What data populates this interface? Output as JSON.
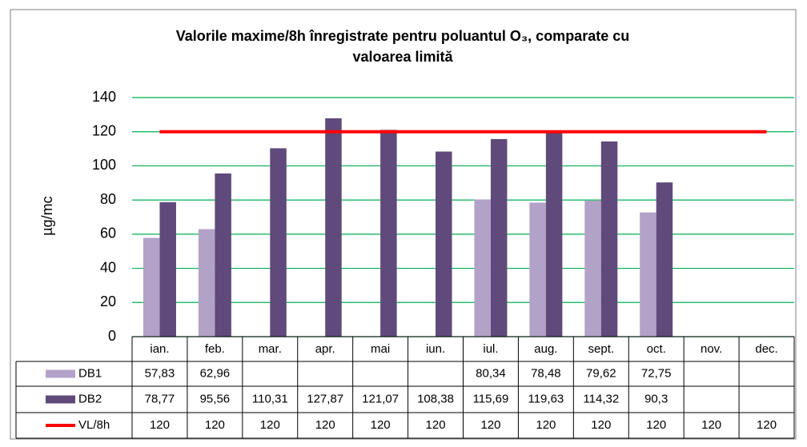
{
  "chart_data": {
    "type": "bar",
    "title": [
      "Valorile maxime/8h înregistrate pentru poluantul O₃, comparate cu",
      "valoarea limită"
    ],
    "y_label": "µg/mc",
    "categories": [
      "ian.",
      "feb.",
      "mar.",
      "apr.",
      "mai",
      "iun.",
      "iul.",
      "aug.",
      "sept.",
      "oct.",
      "nov.",
      "dec."
    ],
    "series": [
      {
        "name": "DB1",
        "type": "bar",
        "color": "#b3a2c7",
        "values": [
          57.83,
          62.96,
          null,
          null,
          null,
          null,
          80.34,
          78.48,
          79.62,
          72.75,
          null,
          null
        ],
        "value_labels": [
          "57,83",
          "62,96",
          null,
          null,
          null,
          null,
          "80,34",
          "78,48",
          "79,62",
          "72,75",
          null,
          null
        ]
      },
      {
        "name": "DB2",
        "type": "bar",
        "color": "#604a7b",
        "values": [
          78.77,
          95.56,
          110.31,
          127.87,
          121.07,
          108.38,
          115.69,
          119.63,
          114.32,
          90.3,
          null,
          null
        ],
        "value_labels": [
          "78,77",
          "95,56",
          "110,31",
          "127,87",
          "121,07",
          "108,38",
          "115,69",
          "119,63",
          "114,32",
          "90,3",
          null,
          null
        ]
      },
      {
        "name": "VL/8h",
        "type": "line",
        "color": "#ff0000",
        "values": [
          120,
          120,
          120,
          120,
          120,
          120,
          120,
          120,
          120,
          120,
          120,
          120
        ]
      }
    ],
    "ylim": [
      0,
      140
    ],
    "yticks": [
      0,
      20,
      40,
      60,
      80,
      100,
      120,
      140
    ],
    "grid": true,
    "grid_color": "#00b050"
  }
}
